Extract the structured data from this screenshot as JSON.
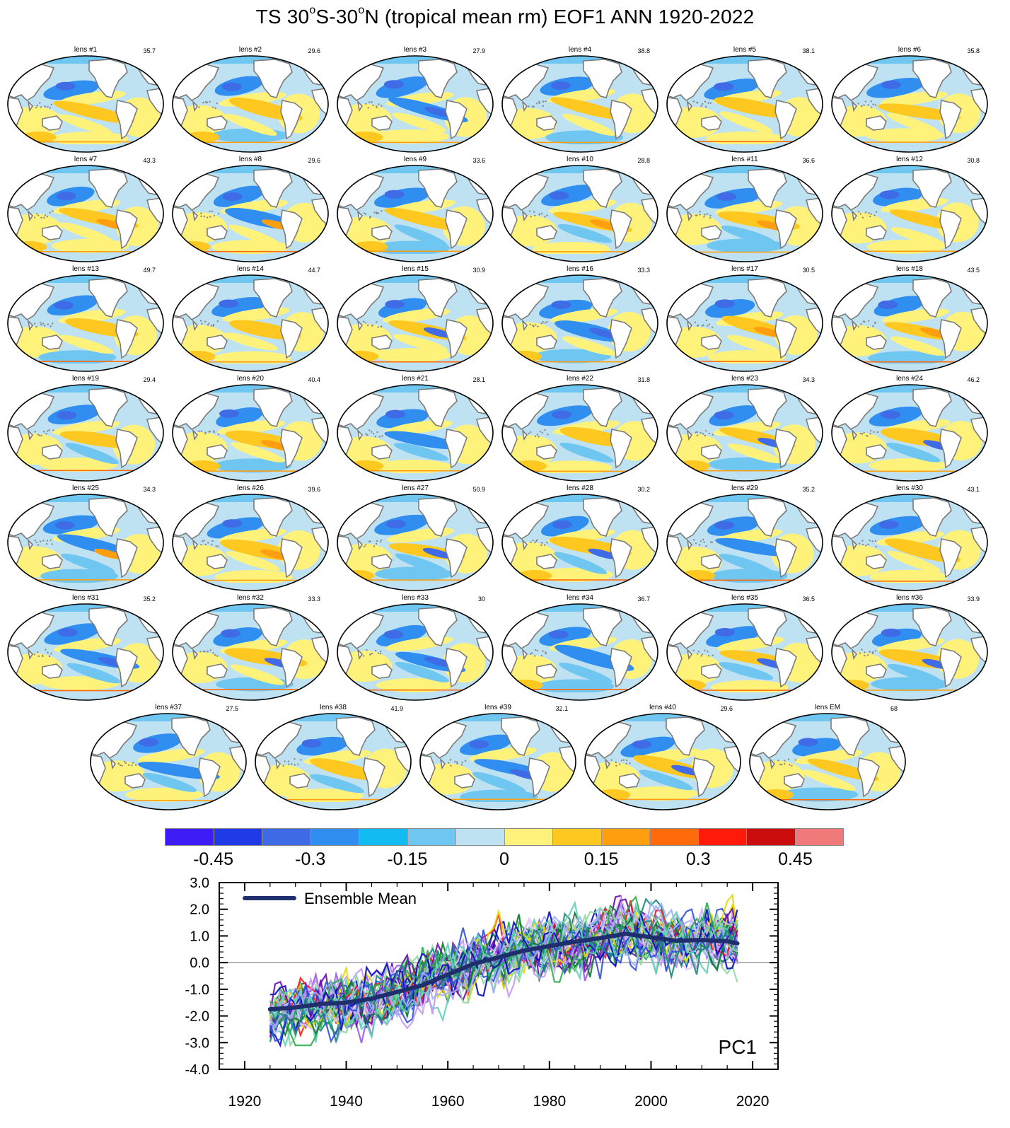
{
  "title": {
    "prefix": "TS 30",
    "sup1": "o",
    "mid": "S-30",
    "sup2": "o",
    "suffix": "N (tropical mean rm) EOF1 ANN 1920-2022"
  },
  "panels": [
    {
      "label": "lens #1",
      "pct": "35.7"
    },
    {
      "label": "lens #2",
      "pct": "29.6"
    },
    {
      "label": "lens #3",
      "pct": "27.9"
    },
    {
      "label": "lens #4",
      "pct": "38.8"
    },
    {
      "label": "lens #5",
      "pct": "38.1"
    },
    {
      "label": "lens #6",
      "pct": "35.8"
    },
    {
      "label": "lens #7",
      "pct": "43.3"
    },
    {
      "label": "lens #8",
      "pct": "29.6"
    },
    {
      "label": "lens #9",
      "pct": "33.6"
    },
    {
      "label": "lens #10",
      "pct": "28.8"
    },
    {
      "label": "lens #11",
      "pct": "36.6"
    },
    {
      "label": "lens #12",
      "pct": "30.8"
    },
    {
      "label": "lens #13",
      "pct": "49.7"
    },
    {
      "label": "lens #14",
      "pct": "44.7"
    },
    {
      "label": "lens #15",
      "pct": "30.9"
    },
    {
      "label": "lens #16",
      "pct": "33.3"
    },
    {
      "label": "lens #17",
      "pct": "30.5"
    },
    {
      "label": "lens #18",
      "pct": "43.5"
    },
    {
      "label": "lens #19",
      "pct": "29.4"
    },
    {
      "label": "lens #20",
      "pct": "40.4"
    },
    {
      "label": "lens #21",
      "pct": "28.1"
    },
    {
      "label": "lens #22",
      "pct": "31.8"
    },
    {
      "label": "lens #23",
      "pct": "34.3"
    },
    {
      "label": "lens #24",
      "pct": "46.2"
    },
    {
      "label": "lens #25",
      "pct": "34.3"
    },
    {
      "label": "lens #26",
      "pct": "39.6"
    },
    {
      "label": "lens #27",
      "pct": "50.9"
    },
    {
      "label": "lens #28",
      "pct": "30.2"
    },
    {
      "label": "lens #29",
      "pct": "35.2"
    },
    {
      "label": "lens #30",
      "pct": "43.1"
    },
    {
      "label": "lens #31",
      "pct": "35.2"
    },
    {
      "label": "lens #32",
      "pct": "33.3"
    },
    {
      "label": "lens #33",
      "pct": "30"
    },
    {
      "label": "lens #34",
      "pct": "36.7"
    },
    {
      "label": "lens #35",
      "pct": "36.5"
    },
    {
      "label": "lens #36",
      "pct": "33.9"
    },
    {
      "label": "lens #37",
      "pct": "27.5"
    },
    {
      "label": "lens #38",
      "pct": "41.9"
    },
    {
      "label": "lens #39",
      "pct": "32.1"
    },
    {
      "label": "lens #40",
      "pct": "29.6"
    },
    {
      "label": "lens EM",
      "pct": "68"
    }
  ],
  "colorbar": {
    "colors": [
      "#3d1cf5",
      "#1f3be8",
      "#3f6be6",
      "#2f8ef0",
      "#12bcf2",
      "#6fc6f0",
      "#bfe2f2",
      "#fff27a",
      "#ffc820",
      "#ff9e0e",
      "#ff6a0a",
      "#ff1a0a",
      "#cc0d0d",
      "#f07a7a"
    ],
    "labels": [
      "-0.45",
      "-0.3",
      "-0.15",
      "0",
      "0.15",
      "0.3",
      "0.45"
    ]
  },
  "chart_data": {
    "type": "line",
    "title": "PC1",
    "x_range": [
      1925,
      2017
    ],
    "xlim": [
      1915,
      2025
    ],
    "ylim": [
      -4.0,
      3.0
    ],
    "x_ticks": [
      "1920",
      "1940",
      "1960",
      "1980",
      "2000",
      "2020"
    ],
    "y_ticks": [
      "3.0",
      "2.0",
      "1.0",
      "0.0",
      "-1.0",
      "-2.0",
      "-3.0",
      "-4.0"
    ],
    "legend": {
      "label": "Ensemble Mean",
      "position": "top-left",
      "color": "#1f2f6e"
    },
    "zero_line": true,
    "ensemble_mean": {
      "name": "Ensemble Mean",
      "x": [
        1925,
        1930,
        1935,
        1940,
        1945,
        1950,
        1955,
        1960,
        1965,
        1970,
        1975,
        1980,
        1985,
        1990,
        1995,
        2000,
        2005,
        2010,
        2015,
        2017
      ],
      "y": [
        -1.75,
        -1.68,
        -1.55,
        -1.5,
        -1.35,
        -1.1,
        -0.85,
        -0.45,
        -0.05,
        0.2,
        0.45,
        0.62,
        0.78,
        0.92,
        1.08,
        0.95,
        0.82,
        0.85,
        0.8,
        0.72
      ]
    },
    "member_count": 40,
    "member_colors": [
      "#6a0dad",
      "#9b59e6",
      "#c29bf2",
      "#e3c8fa",
      "#0a7a2a",
      "#2fae4f",
      "#8fd9a0",
      "#0b0bbf",
      "#3050e0",
      "#a0b0f5",
      "#1c8a78",
      "#5fd0b8",
      "#ff1a1a",
      "#e8d800"
    ]
  }
}
